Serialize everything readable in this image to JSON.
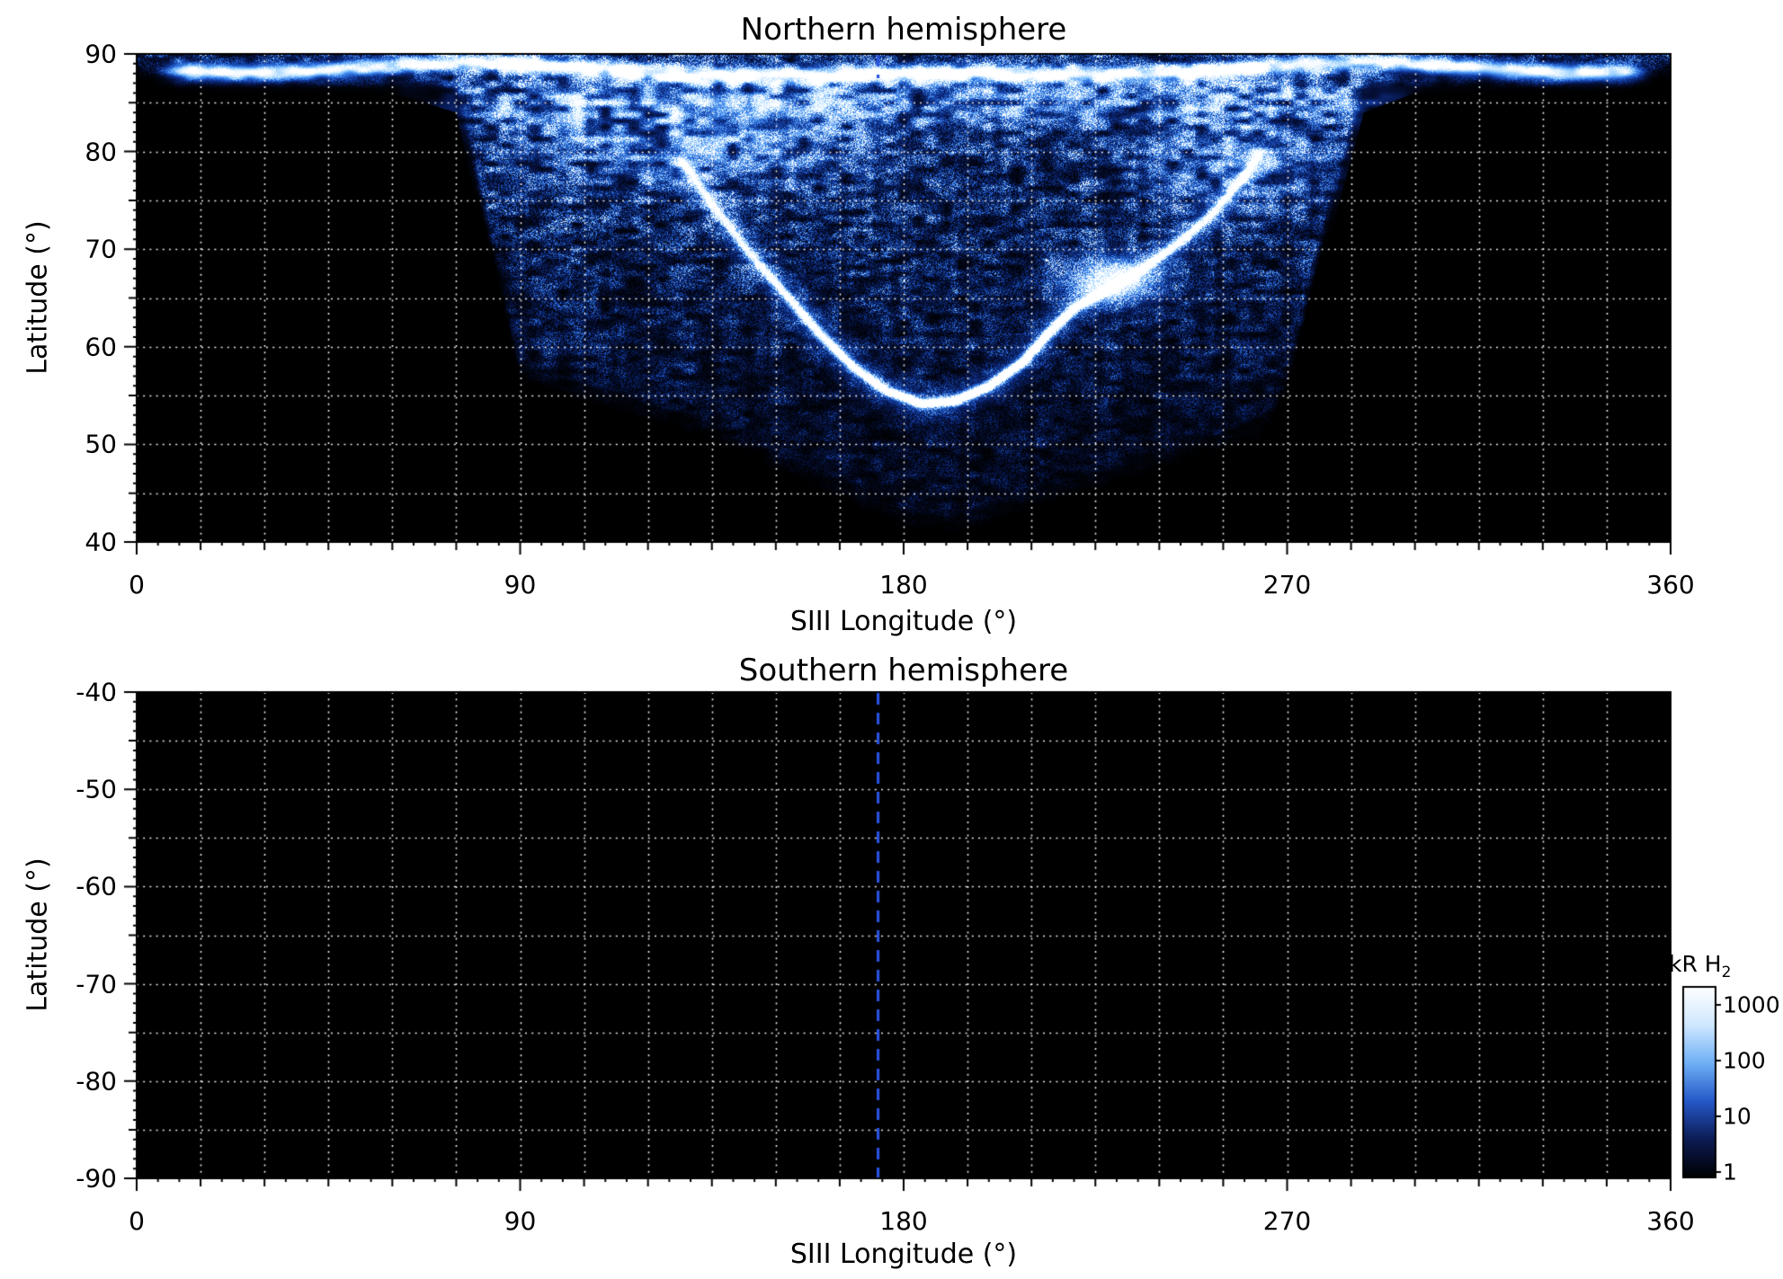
{
  "chart_data": [
    {
      "type": "heatmap",
      "title": "Northern hemisphere",
      "xlabel": "SIII Longitude (°)",
      "ylabel": "Latitude (°)",
      "xlim": [
        0,
        360
      ],
      "ylim": [
        40,
        90
      ],
      "xticks": [
        0,
        90,
        180,
        270,
        360
      ],
      "yticks": [
        90,
        80,
        70,
        60,
        50,
        40
      ],
      "grid": {
        "x_step": 15,
        "y_step": 5,
        "style": "dotted",
        "color": "#ffffff"
      },
      "background": "#000000",
      "cml_marker": {
        "longitude": 174,
        "style": "dashed",
        "color": "#2a52e0",
        "extent": "top_only"
      },
      "aurora": {
        "present": true,
        "peak_intensity_kR": 1000,
        "polar_band": {
          "lat": 88.6,
          "lon_range": [
            5,
            355
          ],
          "amp": 0.95
        },
        "top_glow": {
          "lat": 85.3,
          "sigma_lat": 2.6,
          "lon_range": [
            52,
            315
          ],
          "amp": 0.5
        },
        "lower_boundary": [
          [
            0,
            88
          ],
          [
            60,
            88
          ],
          [
            75,
            86
          ],
          [
            90,
            57
          ],
          [
            105,
            55
          ],
          [
            120,
            53
          ],
          [
            135,
            51
          ],
          [
            150,
            48
          ],
          [
            165,
            45
          ],
          [
            180,
            42
          ],
          [
            195,
            41.5
          ],
          [
            210,
            44
          ],
          [
            225,
            46
          ],
          [
            240,
            48
          ],
          [
            255,
            50
          ],
          [
            264,
            51
          ],
          [
            270,
            56
          ],
          [
            278,
            70
          ],
          [
            288,
            86
          ],
          [
            300,
            88
          ],
          [
            360,
            88
          ]
        ],
        "main_oval": [
          [
            128,
            79
          ],
          [
            136,
            74
          ],
          [
            144,
            69.5
          ],
          [
            152,
            65.5
          ],
          [
            160,
            61.5
          ],
          [
            168,
            58
          ],
          [
            176,
            55.5
          ],
          [
            184,
            54.2
          ],
          [
            192,
            54.5
          ],
          [
            200,
            56
          ],
          [
            208,
            58.5
          ],
          [
            214,
            61.5
          ],
          [
            220,
            64
          ],
          [
            228,
            66
          ],
          [
            236,
            68
          ],
          [
            244,
            70.5
          ],
          [
            252,
            73.5
          ],
          [
            258,
            76.5
          ],
          [
            263,
            79.5
          ]
        ],
        "bright_spot": {
          "lon": 229,
          "lat": 66.8,
          "sigma_lon": 10,
          "sigma_lat": 2.2,
          "amp": 1.0
        },
        "bright_patches": [
          {
            "lon": 130,
            "lat": 81,
            "sigma_lon": 38,
            "sigma_lat": 4.5,
            "amp": 0.55
          },
          {
            "lon": 258,
            "lat": 79,
            "sigma_lon": 25,
            "sigma_lat": 4.5,
            "amp": 0.45
          }
        ]
      }
    },
    {
      "type": "heatmap",
      "title": "Southern hemisphere",
      "xlabel": "SIII Longitude (°)",
      "ylabel": "Latitude (°)",
      "xlim": [
        0,
        360
      ],
      "ylim": [
        -90,
        -40
      ],
      "xticks": [
        0,
        90,
        180,
        270,
        360
      ],
      "yticks": [
        -40,
        -50,
        -60,
        -70,
        -80,
        -90
      ],
      "grid": {
        "x_step": 15,
        "y_step": 5,
        "style": "dotted",
        "color": "#ffffff"
      },
      "background": "#000000",
      "cml_marker": {
        "longitude": 174,
        "style": "dashed",
        "color": "#2a52e0",
        "extent": "full"
      },
      "aurora": {
        "present": false
      }
    }
  ],
  "colorbar": {
    "label": "kR H",
    "label_sub": "2",
    "scale": "log",
    "tick_labels": [
      "1000",
      "100",
      "10",
      "1"
    ],
    "gradient_top_to_bottom": [
      "#ffffff",
      "#cfe8ff",
      "#6fb0f5",
      "#2558c8",
      "#0c1c55",
      "#000000"
    ]
  }
}
